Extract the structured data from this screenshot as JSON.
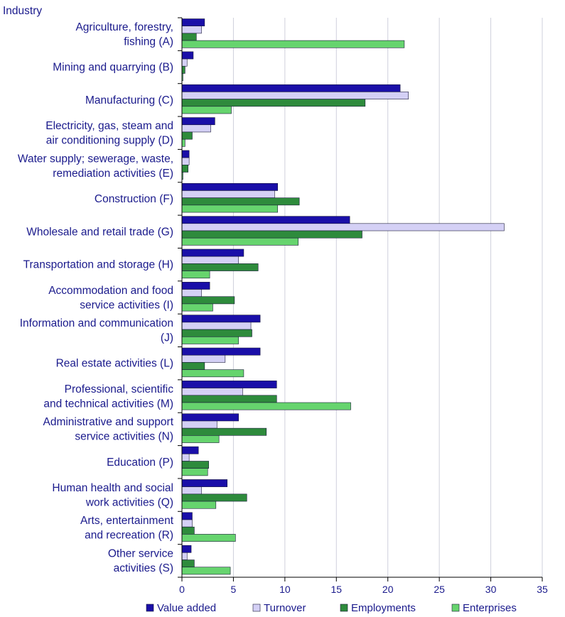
{
  "chart_data": {
    "type": "bar",
    "orientation": "horizontal",
    "ylabel": "Industry",
    "xlim": [
      0,
      35
    ],
    "xticks": [
      0,
      5,
      10,
      15,
      20,
      25,
      30,
      35
    ],
    "grid": true,
    "legend_position": "bottom",
    "categories": [
      [
        "Agriculture, forestry,",
        "fishing (A)"
      ],
      [
        "Mining and quarrying (B)"
      ],
      [
        "Manufacturing (C)"
      ],
      [
        "Electricity, gas, steam and",
        "air conditioning supply (D)"
      ],
      [
        "Water supply; sewerage, waste,",
        "remediation activities (E)"
      ],
      [
        "Construction (F)"
      ],
      [
        "Wholesale and retail trade (G)"
      ],
      [
        "Transportation and storage (H)"
      ],
      [
        "Accommodation and food",
        "service activities (I)"
      ],
      [
        "Information and communication",
        "(J)"
      ],
      [
        "Real estate activities (L)"
      ],
      [
        "Professional, scientific",
        "and technical activities (M)"
      ],
      [
        "Administrative and support",
        "service activities (N)"
      ],
      [
        "Education (P)"
      ],
      [
        "Human health and social",
        "work activities (Q)"
      ],
      [
        "Arts, entertainment",
        "and recreation (R)"
      ],
      [
        "Other service",
        "activities (S)"
      ]
    ],
    "series": [
      {
        "name": "Value added",
        "color": "#1a0fa8",
        "values": [
          2.2,
          1.1,
          21.2,
          3.2,
          0.7,
          9.3,
          16.3,
          6.0,
          2.7,
          7.6,
          7.6,
          9.2,
          5.5,
          1.6,
          4.4,
          1.0,
          0.9
        ]
      },
      {
        "name": "Turnover",
        "color": "#d4d0f5",
        "values": [
          1.9,
          0.5,
          22.0,
          2.8,
          0.7,
          9.0,
          31.3,
          5.5,
          1.9,
          6.7,
          4.2,
          5.9,
          3.4,
          0.7,
          1.9,
          1.0,
          0.5
        ]
      },
      {
        "name": "Employments",
        "color": "#2e8b3c",
        "values": [
          1.4,
          0.3,
          17.8,
          1.0,
          0.6,
          11.4,
          17.5,
          7.4,
          5.1,
          6.8,
          2.2,
          9.2,
          8.2,
          2.6,
          6.3,
          1.2,
          1.2
        ]
      },
      {
        "name": "Enterprises",
        "color": "#66d46e",
        "values": [
          21.6,
          0.1,
          4.8,
          0.3,
          0.1,
          9.3,
          11.3,
          2.7,
          3.0,
          5.5,
          6.0,
          16.4,
          3.6,
          2.5,
          3.3,
          5.2,
          4.7
        ]
      }
    ]
  }
}
